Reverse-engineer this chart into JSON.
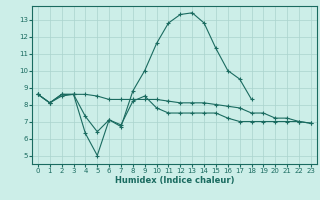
{
  "xlabel": "Humidex (Indice chaleur)",
  "ylabel": "",
  "background_color": "#cceee8",
  "grid_color": "#aad4ce",
  "line_color": "#1a6b60",
  "xlim": [
    -0.5,
    23.5
  ],
  "ylim": [
    4.5,
    13.8
  ],
  "xticks": [
    0,
    1,
    2,
    3,
    4,
    5,
    6,
    7,
    8,
    9,
    10,
    11,
    12,
    13,
    14,
    15,
    16,
    17,
    18,
    19,
    20,
    21,
    22,
    23
  ],
  "yticks": [
    5,
    6,
    7,
    8,
    9,
    10,
    11,
    12,
    13
  ],
  "line1_y": [
    8.6,
    8.1,
    8.6,
    8.6,
    6.3,
    5.0,
    7.1,
    6.7,
    8.8,
    10.0,
    11.6,
    12.8,
    13.3,
    13.4,
    12.8,
    11.3,
    10.0,
    9.5,
    8.3,
    null,
    null,
    null,
    null,
    null
  ],
  "line2_y": [
    8.6,
    8.1,
    8.6,
    8.6,
    8.6,
    8.5,
    8.3,
    8.3,
    8.3,
    8.3,
    8.3,
    8.2,
    8.1,
    8.1,
    8.1,
    8.0,
    7.9,
    7.8,
    7.5,
    7.5,
    7.2,
    7.2,
    7.0,
    6.9
  ],
  "line3_y": [
    8.6,
    8.1,
    8.5,
    8.6,
    7.3,
    6.4,
    7.1,
    6.8,
    8.2,
    8.5,
    7.8,
    7.5,
    7.5,
    7.5,
    7.5,
    7.5,
    7.2,
    7.0,
    7.0,
    7.0,
    7.0,
    7.0,
    7.0,
    6.9
  ],
  "figsize": [
    3.2,
    2.0
  ],
  "dpi": 100
}
